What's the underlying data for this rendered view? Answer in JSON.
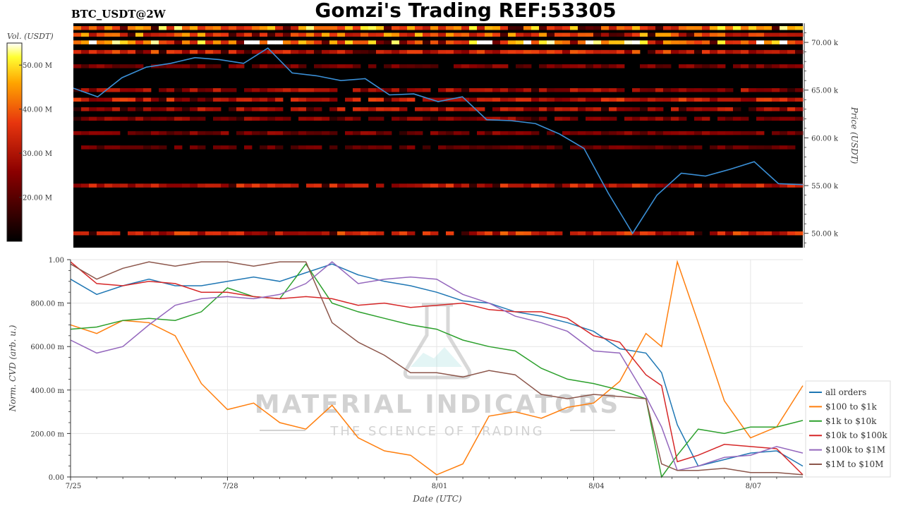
{
  "header": {
    "title": "Gomzi's Trading REF:53305",
    "symbol": "BTC_USDT@2W"
  },
  "watermark": {
    "brand": "MATERIAL INDICATORS",
    "tagline": "THE SCIENCE OF TRADING"
  },
  "colors": {
    "price_line": "#3a8fd6",
    "heatmap_background": "#000000",
    "watermark": "#c8c8c8"
  },
  "chart_data": [
    {
      "type": "heatmap",
      "name": "order-book-liquidity",
      "colorbar_label": "Vol. (USDT)",
      "colorbar_ticks": [
        "50.00 M",
        "40.00 M",
        "30.00 M",
        "20.00 M"
      ],
      "colorbar_values": [
        50,
        40,
        30,
        20
      ],
      "colorbar_range": [
        10,
        55
      ],
      "ylabel": "Price (USDT)",
      "y_ticks": [
        "70.00 k",
        "65.00 k",
        "60.00 k",
        "55.00 k",
        "50.00 k"
      ],
      "y_tick_values": [
        70000,
        65000,
        60000,
        55000,
        50000
      ],
      "ylim": [
        48500,
        72000
      ],
      "xlim_days": [
        "2024-07-25",
        "2024-08-08"
      ],
      "price_series": {
        "x": [
          "7/25 00:00",
          "7/25 12:00",
          "7/26 00:00",
          "7/26 12:00",
          "7/27 00:00",
          "7/27 12:00",
          "7/28 00:00",
          "7/28 12:00",
          "7/29 00:00",
          "7/29 12:00",
          "7/30 00:00",
          "7/30 12:00",
          "7/31 00:00",
          "7/31 12:00",
          "8/01 00:00",
          "8/01 12:00",
          "8/02 00:00",
          "8/02 12:00",
          "8/03 00:00",
          "8/03 12:00",
          "8/04 00:00",
          "8/04 12:00",
          "8/05 00:00",
          "8/05 06:00",
          "8/05 12:00",
          "8/06 00:00",
          "8/06 12:00",
          "8/07 00:00",
          "8/07 12:00",
          "8/08 00:00",
          "8/08 12:00"
        ],
        "values": [
          65200,
          64300,
          66300,
          67400,
          67800,
          68400,
          68200,
          67800,
          69400,
          66800,
          66500,
          66000,
          66200,
          64500,
          64600,
          63800,
          64300,
          61900,
          61800,
          61500,
          60400,
          58900,
          54200,
          50000,
          54000,
          56300,
          56000,
          56700,
          57500,
          55200,
          55100
        ]
      },
      "liquidity_bands": [
        {
          "price": 71500,
          "intensity": 0.85
        },
        {
          "price": 70800,
          "intensity": 0.75
        },
        {
          "price": 70000,
          "intensity": 0.95
        },
        {
          "price": 69000,
          "intensity": 0.6
        },
        {
          "price": 67500,
          "intensity": 0.35
        },
        {
          "price": 65000,
          "intensity": 0.45
        },
        {
          "price": 64000,
          "intensity": 0.55
        },
        {
          "price": 63000,
          "intensity": 0.5
        },
        {
          "price": 62000,
          "intensity": 0.4
        },
        {
          "price": 60500,
          "intensity": 0.35
        },
        {
          "price": 59000,
          "intensity": 0.3
        },
        {
          "price": 55000,
          "intensity": 0.55
        },
        {
          "price": 50000,
          "intensity": 0.6
        }
      ]
    },
    {
      "type": "line",
      "name": "normalized-cvd",
      "xlabel": "Date (UTC)",
      "ylabel": "Norm. CVD (arb. u.)",
      "x_ticks": [
        "7/25",
        "7/28",
        "8/01",
        "8/04",
        "8/07"
      ],
      "x_tick_days": [
        0,
        3,
        7,
        10,
        13
      ],
      "xlim_days": [
        0,
        14
      ],
      "y_ticks": [
        "1.00",
        "800.00 m",
        "600.00 m",
        "400.00 m",
        "200.00 m",
        "0.00"
      ],
      "y_tick_values": [
        1.0,
        0.8,
        0.6,
        0.4,
        0.2,
        0.0
      ],
      "ylim": [
        0,
        1
      ],
      "grid": true,
      "legend_position": "right",
      "x_days": [
        0,
        0.5,
        1,
        1.5,
        2,
        2.5,
        3,
        3.5,
        4,
        4.5,
        5,
        5.5,
        6,
        6.5,
        7,
        7.5,
        8,
        8.5,
        9,
        9.5,
        10,
        10.5,
        11,
        11.3,
        11.6,
        12,
        12.5,
        13,
        13.5,
        14
      ],
      "series": [
        {
          "name": "all orders",
          "color": "#1f77b4",
          "values": [
            0.91,
            0.84,
            0.88,
            0.91,
            0.88,
            0.88,
            0.9,
            0.92,
            0.9,
            0.94,
            0.98,
            0.93,
            0.9,
            0.88,
            0.85,
            0.81,
            0.8,
            0.76,
            0.74,
            0.71,
            0.67,
            0.59,
            0.57,
            0.48,
            0.24,
            0.05,
            0.08,
            0.11,
            0.12,
            0.05
          ]
        },
        {
          "name": "$100 to $1k",
          "color": "#ff7f0e",
          "values": [
            0.7,
            0.66,
            0.72,
            0.71,
            0.65,
            0.43,
            0.31,
            0.34,
            0.25,
            0.22,
            0.33,
            0.18,
            0.12,
            0.1,
            0.01,
            0.06,
            0.28,
            0.3,
            0.27,
            0.32,
            0.34,
            0.44,
            0.66,
            0.6,
            0.99,
            0.71,
            0.35,
            0.18,
            0.23,
            0.42
          ]
        },
        {
          "name": "$1k to $10k",
          "color": "#2ca02c",
          "values": [
            0.68,
            0.69,
            0.72,
            0.73,
            0.72,
            0.76,
            0.87,
            0.83,
            0.82,
            0.98,
            0.8,
            0.76,
            0.73,
            0.7,
            0.68,
            0.63,
            0.6,
            0.58,
            0.5,
            0.45,
            0.43,
            0.4,
            0.36,
            0.0,
            0.1,
            0.22,
            0.2,
            0.23,
            0.23,
            0.26
          ]
        },
        {
          "name": "$10k to $100k",
          "color": "#d62728",
          "values": [
            0.99,
            0.89,
            0.88,
            0.9,
            0.89,
            0.85,
            0.85,
            0.83,
            0.82,
            0.83,
            0.82,
            0.79,
            0.8,
            0.78,
            0.79,
            0.8,
            0.77,
            0.76,
            0.76,
            0.73,
            0.65,
            0.62,
            0.47,
            0.42,
            0.07,
            0.1,
            0.15,
            0.14,
            0.13,
            0.01
          ]
        },
        {
          "name": "$100k to $1M",
          "color": "#9467bd",
          "values": [
            0.63,
            0.57,
            0.6,
            0.7,
            0.79,
            0.82,
            0.83,
            0.82,
            0.84,
            0.89,
            0.99,
            0.89,
            0.91,
            0.92,
            0.91,
            0.84,
            0.8,
            0.74,
            0.71,
            0.67,
            0.58,
            0.57,
            0.37,
            0.23,
            0.03,
            0.05,
            0.09,
            0.1,
            0.14,
            0.11
          ]
        },
        {
          "name": "$1M to $10M",
          "color": "#8c564b",
          "values": [
            0.98,
            0.91,
            0.96,
            0.99,
            0.97,
            0.99,
            0.99,
            0.97,
            0.99,
            0.99,
            0.71,
            0.62,
            0.56,
            0.48,
            0.48,
            0.46,
            0.49,
            0.47,
            0.38,
            0.36,
            0.38,
            0.37,
            0.36,
            0.06,
            0.03,
            0.03,
            0.04,
            0.02,
            0.02,
            0.01
          ]
        }
      ]
    }
  ]
}
